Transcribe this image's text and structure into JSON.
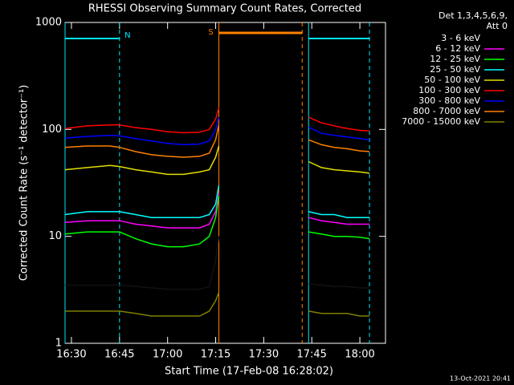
{
  "chart_data": {
    "type": "line",
    "title": "RHESSI Observing Summary Count Rates, Corrected",
    "x_label": "Start Time (17-Feb-08 16:28:02)",
    "y_label": "Corrected Count Rate (s⁻¹ detector⁻¹)",
    "legend_title": [
      "Det 1,3,4,5,6,9,",
      "Att 0"
    ],
    "timestamp": "13-Oct-2021 20:41",
    "log_y": true,
    "legend": "right",
    "x": [
      "16:28",
      "16:35",
      "16:42",
      "16:45",
      "16:50",
      "16:55",
      "17:00",
      "17:05",
      "17:10",
      "17:13",
      "17:15",
      "17:16",
      "17:30",
      "17:44",
      "17:48",
      "17:52",
      "17:56",
      "18:00",
      "18:03"
    ],
    "xlim": [
      "16:28",
      "18:08"
    ],
    "xticks": [
      "16:30",
      "16:45",
      "17:00",
      "17:15",
      "17:30",
      "17:45",
      "18:00"
    ],
    "ylim": [
      1,
      1000
    ],
    "yticks": [
      1,
      10,
      100,
      1000
    ],
    "flags": [
      {
        "label": "N",
        "color": "#00e5ff",
        "intervals": [
          [
            "16:28",
            "16:45"
          ],
          [
            "17:44",
            "18:03"
          ]
        ]
      },
      {
        "label": "S",
        "color": "#ff8000",
        "intervals": [
          [
            "17:16",
            "17:42"
          ]
        ]
      }
    ],
    "series": [
      {
        "name": "3 - 6 keV",
        "color": "#000000",
        "values": [
          3.5,
          3.5,
          3.5,
          3.5,
          3.4,
          3.3,
          3.2,
          3.2,
          3.2,
          3.4,
          6,
          10,
          null,
          3.6,
          3.5,
          3.4,
          3.4,
          3.3,
          3.3
        ]
      },
      {
        "name": "6 - 12 keV",
        "color": "#ff00ff",
        "values": [
          13.5,
          14,
          14,
          14,
          13,
          12.5,
          12,
          12,
          12,
          13,
          17,
          25,
          null,
          15,
          14,
          13.5,
          13,
          13,
          13
        ]
      },
      {
        "name": "12 - 25 keV",
        "color": "#00ff00",
        "values": [
          10.5,
          11,
          11,
          11,
          9.5,
          8.5,
          8,
          8,
          8.5,
          10,
          15,
          24,
          null,
          11,
          10.5,
          10,
          10,
          9.8,
          9.5
        ]
      },
      {
        "name": "25 - 50 keV",
        "color": "#00ffff",
        "values": [
          16,
          17,
          17,
          17,
          16,
          15,
          15,
          15,
          15,
          16,
          20,
          30,
          null,
          17,
          16,
          16,
          15,
          15,
          15
        ]
      },
      {
        "name": "50 - 100 keV",
        "color": "#e0e000",
        "values": [
          42,
          44,
          46,
          45,
          42,
          40,
          38,
          38,
          40,
          42,
          55,
          70,
          null,
          50,
          44,
          42,
          41,
          40,
          39
        ]
      },
      {
        "name": "100 - 300 keV",
        "color": "#ff0000",
        "values": [
          102,
          108,
          110,
          110,
          104,
          100,
          95,
          93,
          94,
          100,
          125,
          160,
          null,
          130,
          115,
          108,
          102,
          98,
          97
        ]
      },
      {
        "name": "300 - 800 keV",
        "color": "#0000ff",
        "values": [
          83,
          86,
          88,
          87,
          82,
          78,
          74,
          72,
          73,
          78,
          100,
          130,
          null,
          105,
          92,
          88,
          85,
          82,
          80
        ]
      },
      {
        "name": "800 - 7000 keV",
        "color": "#ff8000",
        "values": [
          68,
          70,
          70,
          68,
          62,
          58,
          56,
          55,
          56,
          60,
          80,
          110,
          null,
          80,
          72,
          68,
          66,
          63,
          62
        ]
      },
      {
        "name": "7000 - 15000 keV",
        "color": "#808000",
        "values": [
          2,
          2,
          2,
          2,
          1.9,
          1.8,
          1.8,
          1.8,
          1.8,
          2,
          2.5,
          3,
          null,
          2,
          1.9,
          1.9,
          1.9,
          1.8,
          1.8
        ]
      }
    ]
  }
}
